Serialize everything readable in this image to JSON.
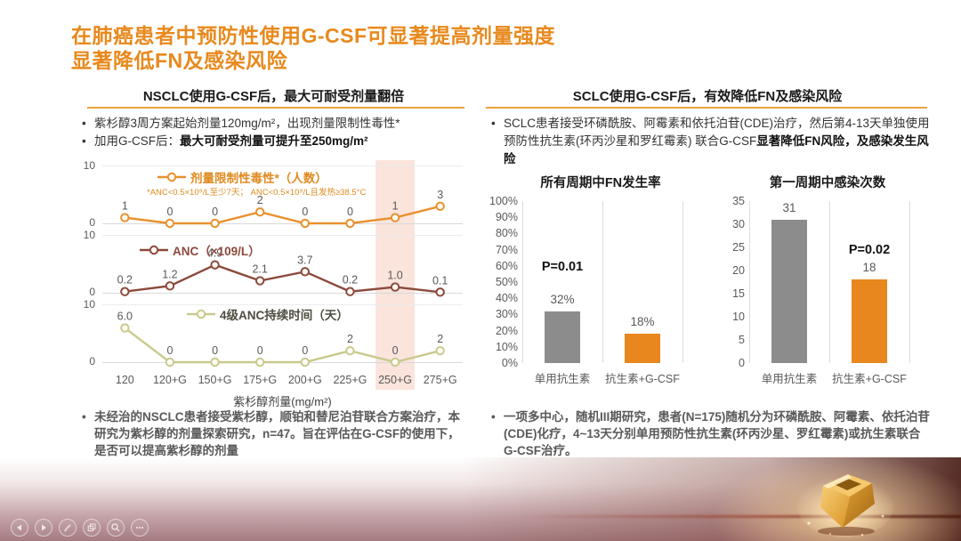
{
  "slide": {
    "title_line1": "在肺癌患者中预防性使用G-CSF可显著提高剂量强度",
    "title_line2": "显著降低FN及感染风险"
  },
  "left_section": {
    "header": "NSCLC使用G-CSF后，最大可耐受剂量翻倍",
    "bullets": [
      {
        "text": "紫杉醇3周方案起始剂量120mg/m²，出现剂量限制性毒性*",
        "bold": ""
      },
      {
        "text": "加用G-CSF后：",
        "bold": "最大可耐受剂量可提升至250mg/m²"
      }
    ],
    "footnote": "未经治的NSCLC患者接受紫杉醇，顺铂和替尼泊苷联合方案治疗，本研究为紫杉醇的剂量探索研究，n=47。旨在评估在G-CSF的使用下，是否可以提高紫杉醇的剂量"
  },
  "right_section": {
    "header": "SCLC使用G-CSF后，有效降低FN及感染风险",
    "bullet": {
      "text": "SCLC患者接受环磷酰胺、阿霉素和依托泊苷(CDE)治疗，然后第4-13天单独使用预防性抗生素(环丙沙星和罗红霉素) 联合G-CSF",
      "bold": "显著降低FN风险，及感染发生风险"
    },
    "footnote": "一项多中心，随机III期研究，患者(N=175)随机分为环磷酰胺、阿霉素、依托泊苷(CDE)化疗，4~13天分别单用预防性抗生素(环丙沙星、罗红霉素)或抗生素联合G-CSF治疗。"
  },
  "chart_data": [
    {
      "id": "dose-line-chart",
      "type": "line",
      "categories": [
        "120",
        "120+G",
        "150+G",
        "175+G",
        "200+G",
        "225+G",
        "250+G",
        "275+G"
      ],
      "xlabel": "紫杉醇剂量(mg/m²)",
      "ylim": [
        0,
        10
      ],
      "grid": false,
      "highlight_category": "250+G",
      "panels": [
        {
          "legend": "剂量限制性毒性*（人数）",
          "legend_note": "*ANC<0.5×10⁹/L至少7天；  ANC<0.5×10⁹/L且发热≥38.5°C",
          "color": "#E8912D",
          "legend_color": "#DF8A1E",
          "values": [
            1,
            0,
            0,
            2,
            0,
            0,
            1,
            3
          ],
          "labels": [
            "1",
            "0",
            "0",
            "2",
            "0",
            "0",
            "1",
            "3"
          ]
        },
        {
          "legend": "ANC（×109/L）",
          "legend_note": "",
          "color": "#8B4A3C",
          "legend_color": "#8B4A3C",
          "values": [
            0.2,
            1.2,
            4.9,
            2.1,
            3.7,
            0.2,
            1.0,
            0.1
          ],
          "labels": [
            "0.2",
            "1.2",
            "4.9",
            "2.1",
            "3.7",
            "0.2",
            "1.0",
            "0.1"
          ]
        },
        {
          "legend": "4级ANC持续时间（天）",
          "legend_note": "",
          "color": "#C9C98E",
          "legend_color": "#4D4C3F",
          "values": [
            6.0,
            0,
            0,
            0,
            0,
            2,
            0,
            2
          ],
          "labels": [
            "6.0",
            "0",
            "0",
            "0",
            "0",
            "2",
            "0",
            "2"
          ]
        }
      ]
    },
    {
      "id": "fn-rate-bar-chart",
      "type": "bar",
      "title": "所有周期中FN发生率",
      "categories": [
        "单用抗生素",
        "抗生素+G-CSF"
      ],
      "values": [
        32,
        18
      ],
      "labels": [
        "32%",
        "18%"
      ],
      "colors": [
        "#8C8C8C",
        "#E8871D"
      ],
      "ylim": [
        0,
        100
      ],
      "ytick_step": 10,
      "ytick_suffix": "%",
      "p_value": "P=0.01",
      "legend_position": "none"
    },
    {
      "id": "infection-bar-chart",
      "type": "bar",
      "title": "第一周期中感染次数",
      "categories": [
        "单用抗生素",
        "抗生素+G-CSF"
      ],
      "values": [
        31,
        18
      ],
      "labels": [
        "31",
        "18"
      ],
      "colors": [
        "#8C8C8C",
        "#E8871D"
      ],
      "ylim": [
        0,
        35
      ],
      "ytick_step": 5,
      "ytick_suffix": "",
      "p_value": "P=0.02",
      "legend_position": "none"
    }
  ],
  "toolbar": {
    "icons": [
      "previous-slide",
      "next-slide",
      "pen",
      "slides-overview",
      "zoom",
      "more"
    ]
  },
  "colors": {
    "accent_orange": "#E8891D",
    "underline_orange": "#E8A33D",
    "bar_gray": "#8C8C8C",
    "bar_orange": "#E8871D",
    "highlight_band": "#F8DDD2",
    "text_gray": "#595959"
  }
}
